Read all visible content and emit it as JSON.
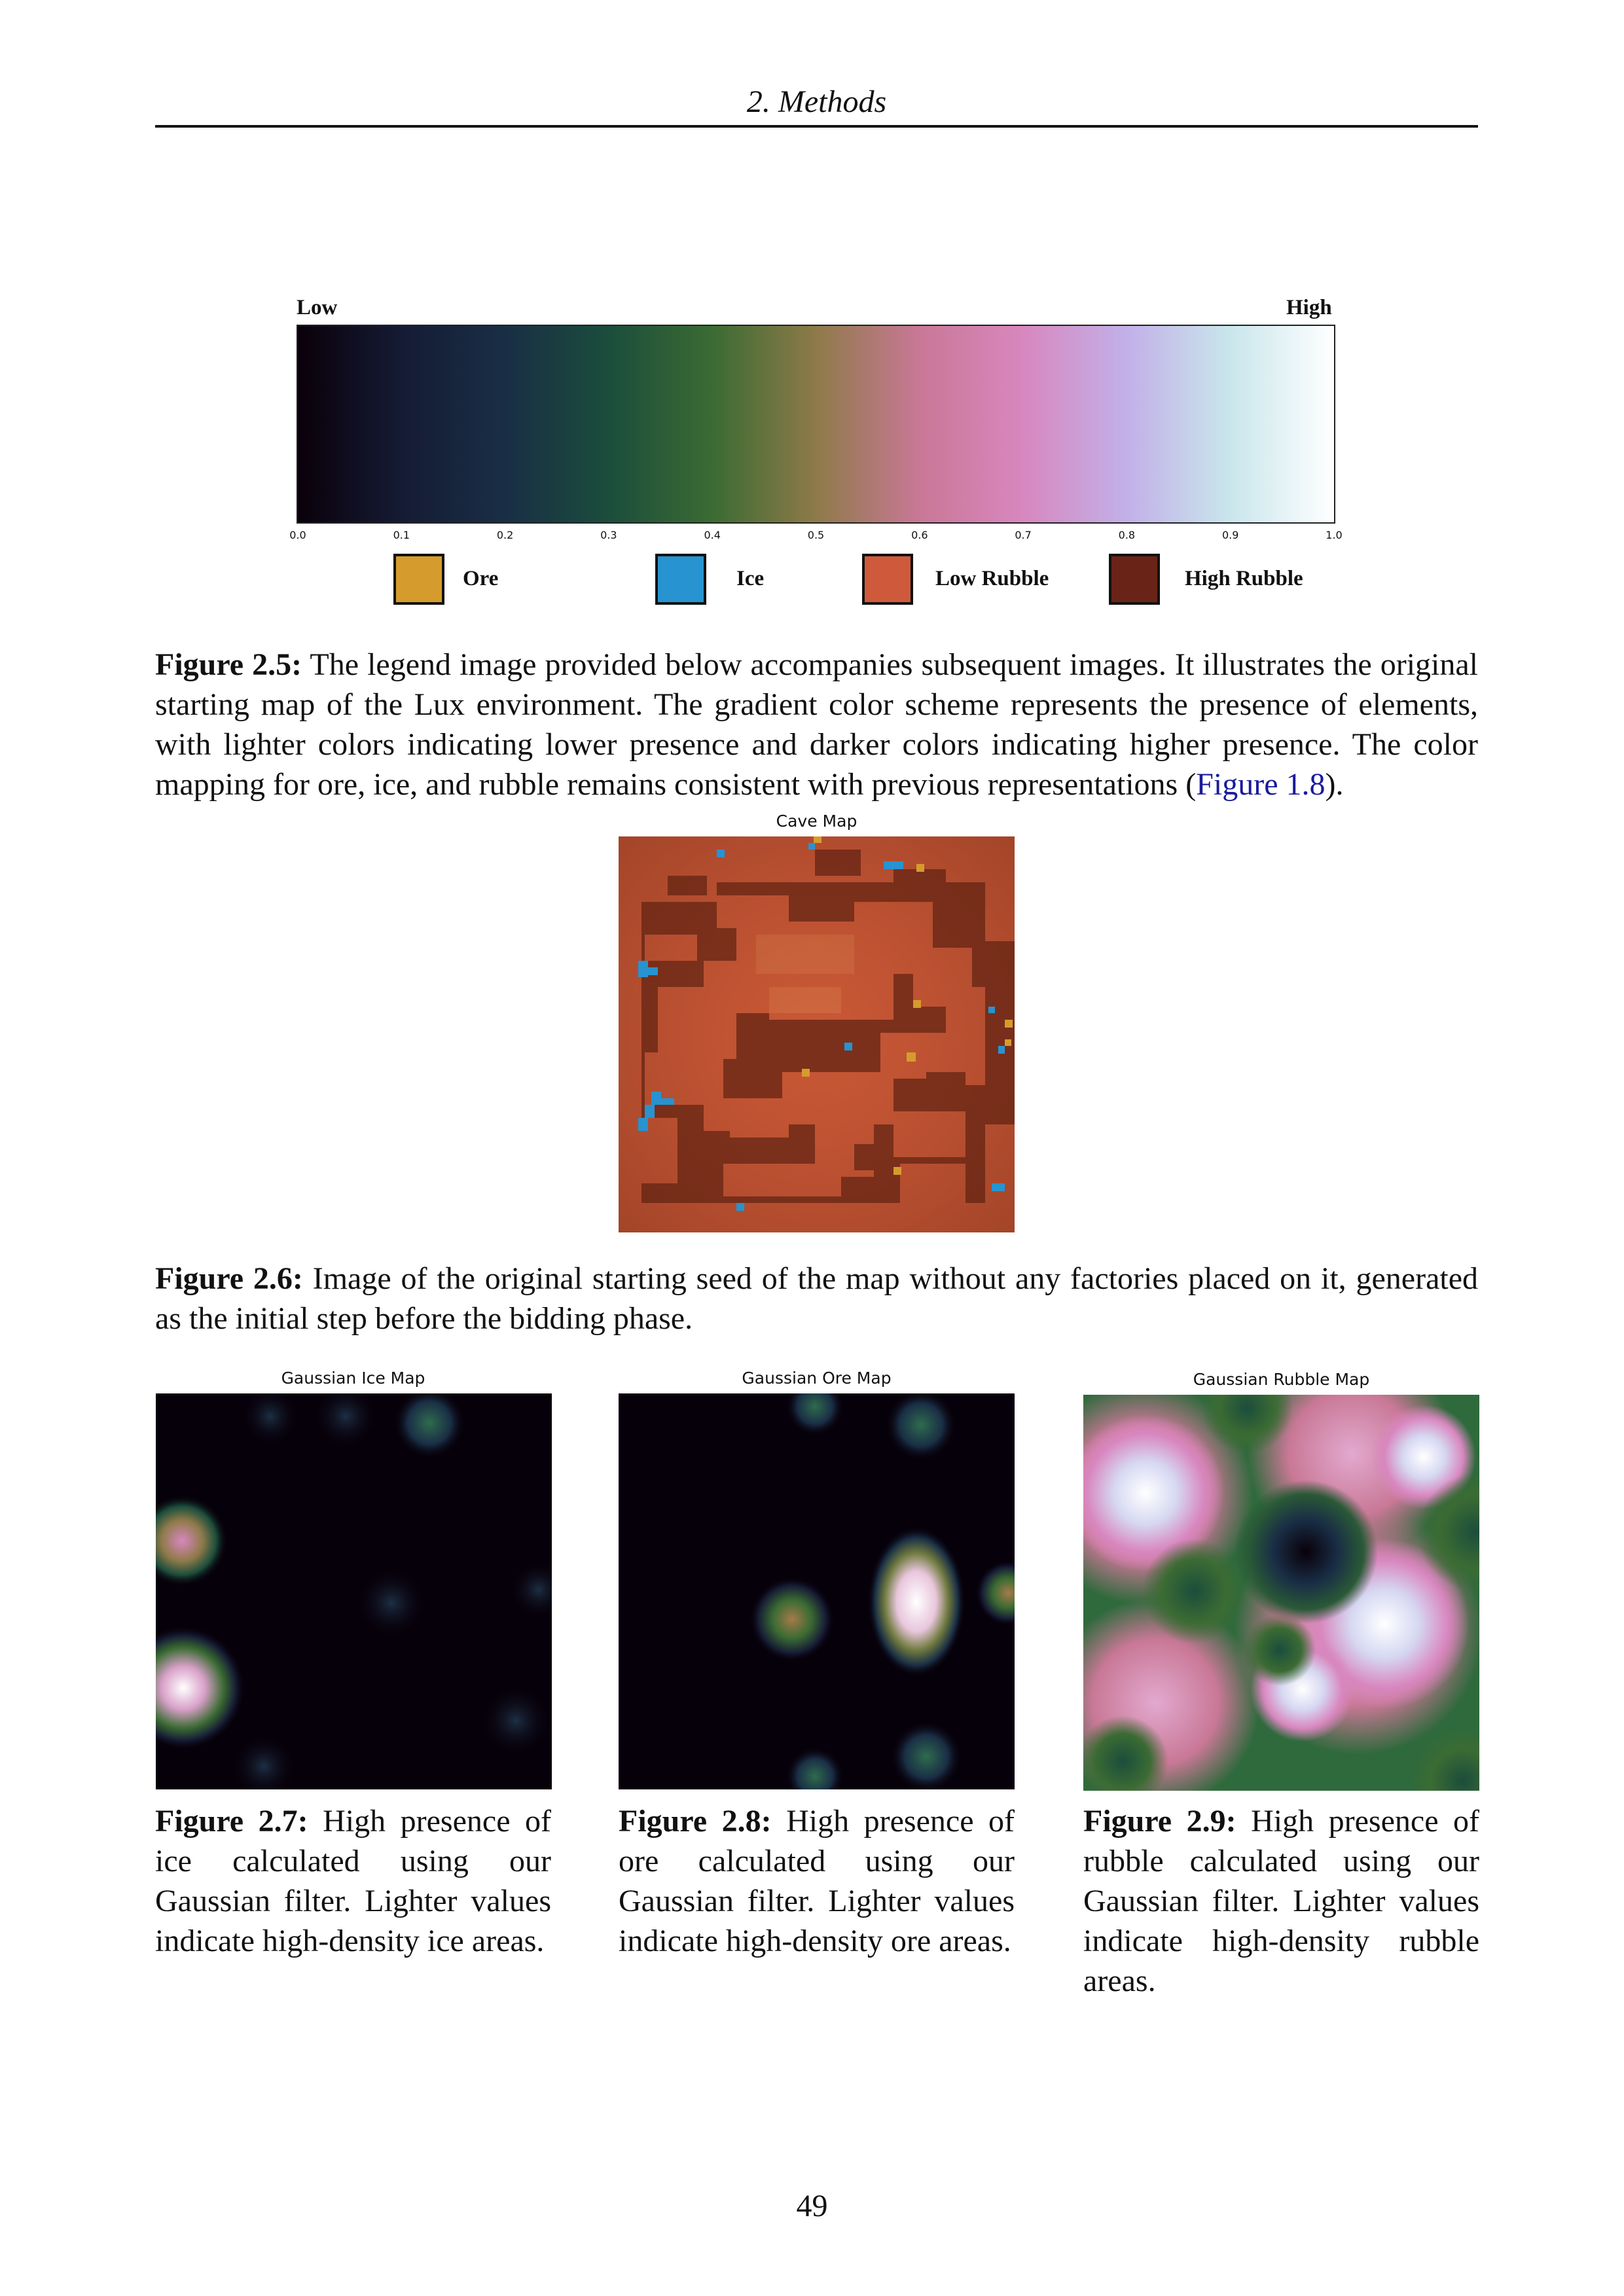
{
  "header": {
    "chapter": "2. Methods"
  },
  "legend": {
    "low_label": "Low",
    "high_label": "High",
    "ticks": [
      "0.0",
      "0.1",
      "0.2",
      "0.3",
      "0.4",
      "0.5",
      "0.6",
      "0.7",
      "0.8",
      "0.9",
      "1.0"
    ],
    "items": [
      {
        "label": "Ore",
        "color": "#d69b2d"
      },
      {
        "label": "Ice",
        "color": "#2793d0"
      },
      {
        "label": "Low Rubble",
        "color": "#cf5a3b"
      },
      {
        "label": "High Rubble",
        "color": "#6a2417"
      }
    ]
  },
  "fig25": {
    "label": "Figure 2.5:",
    "text": "The legend image provided below accompanies subsequent images. It illustrates the original starting map of the Lux environment. The gradient color scheme represents the presence of elements, with lighter colors indicating lower presence and darker colors indicating higher presence. The color mapping for ore, ice, and rubble remains consistent with previous representations (",
    "link": "Figure 1.8",
    "tail": ")."
  },
  "cave_map": {
    "title": "Cave Map"
  },
  "fig26": {
    "label": "Figure 2.6:",
    "text": "Image of the original starting seed of the map without any factories placed on it, generated as the initial step before the bidding phase."
  },
  "gauss": {
    "ice": {
      "title": "Gaussian Ice Map"
    },
    "ore": {
      "title": "Gaussian Ore Map"
    },
    "rubble": {
      "title": "Gaussian Rubble Map"
    }
  },
  "fig27": {
    "label": "Figure 2.7:",
    "text": "High presence of ice calculated using our Gaussian filter. Lighter values indicate high-density ice areas."
  },
  "fig28": {
    "label": "Figure 2.8:",
    "text": "High presence of ore calculated using our Gaussian filter. Lighter values indicate high-density ore areas."
  },
  "fig29": {
    "label": "Figure 2.9:",
    "text": "High presence of rubble calculated using our Gaussian filter. Lighter values indicate high-density rubble areas."
  },
  "page_number": "49"
}
